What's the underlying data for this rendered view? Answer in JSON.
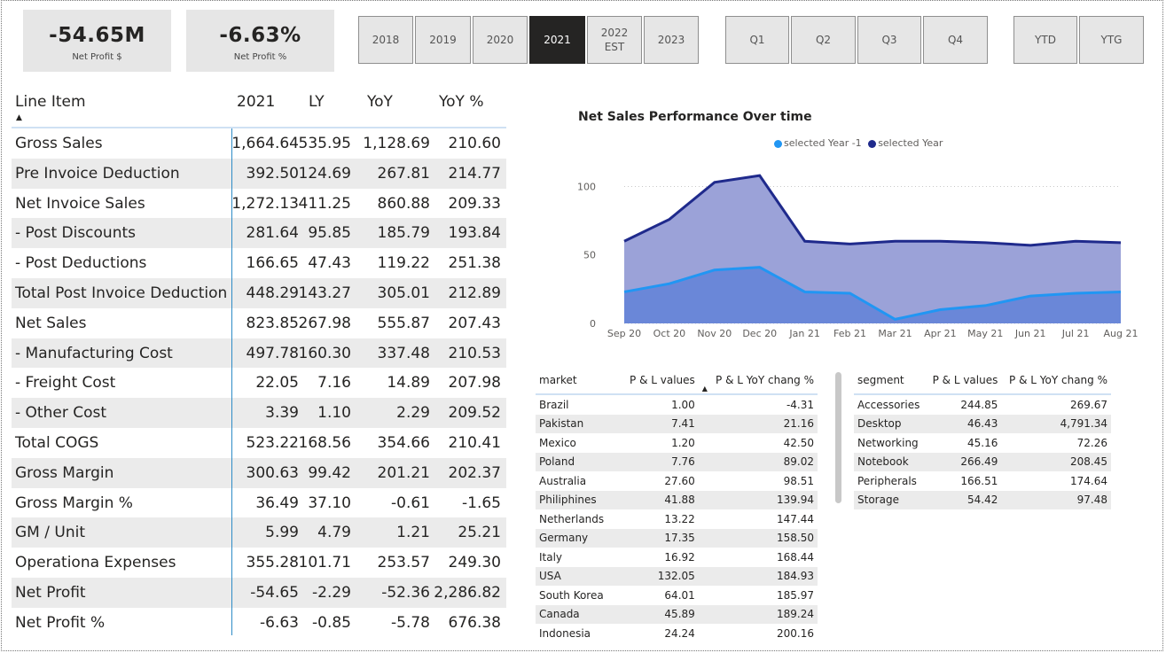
{
  "kpis": [
    {
      "value": "-54.65M",
      "label": "Net Profit $"
    },
    {
      "value": "-6.63%",
      "label": "Net Profit %"
    }
  ],
  "years": [
    "2018",
    "2019",
    "2020",
    "2021",
    "2022\nEST",
    "2023"
  ],
  "selected_year": "2021",
  "quarters": [
    "Q1",
    "Q2",
    "Q3",
    "Q4"
  ],
  "periods": [
    "YTD",
    "YTG"
  ],
  "pl": {
    "headers": [
      "Line Item",
      "2021",
      "LY",
      "YoY",
      "YoY %"
    ],
    "rows": [
      [
        "Gross Sales",
        "1,664.64",
        "535.95",
        "1,128.69",
        "210.60"
      ],
      [
        "Pre Invoice Deduction",
        "392.50",
        "124.69",
        "267.81",
        "214.77"
      ],
      [
        "Net Invoice Sales",
        "1,272.13",
        "411.25",
        "860.88",
        "209.33"
      ],
      [
        "- Post Discounts",
        "281.64",
        "95.85",
        "185.79",
        "193.84"
      ],
      [
        "- Post Deductions",
        "166.65",
        "47.43",
        "119.22",
        "251.38"
      ],
      [
        "Total Post Invoice Deduction",
        "448.29",
        "143.27",
        "305.01",
        "212.89"
      ],
      [
        "Net Sales",
        "823.85",
        "267.98",
        "555.87",
        "207.43"
      ],
      [
        "- Manufacturing Cost",
        "497.78",
        "160.30",
        "337.48",
        "210.53"
      ],
      [
        "- Freight Cost",
        "22.05",
        "7.16",
        "14.89",
        "207.98"
      ],
      [
        "- Other Cost",
        "3.39",
        "1.10",
        "2.29",
        "209.52"
      ],
      [
        "Total COGS",
        "523.22",
        "168.56",
        "354.66",
        "210.41"
      ],
      [
        "Gross Margin",
        "300.63",
        "99.42",
        "201.21",
        "202.37"
      ],
      [
        "Gross Margin %",
        "36.49",
        "37.10",
        "-0.61",
        "-1.65"
      ],
      [
        "GM / Unit",
        "5.99",
        "4.79",
        "1.21",
        "25.21"
      ],
      [
        "Operationa Expenses",
        "355.28",
        "101.71",
        "253.57",
        "249.30"
      ],
      [
        "Net Profit",
        "-54.65",
        "-2.29",
        "-52.36",
        "2,286.82"
      ],
      [
        "Net Profit %",
        "-6.63",
        "-0.85",
        "-5.78",
        "676.38"
      ]
    ]
  },
  "chart_data": {
    "type": "area",
    "title": "Net Sales Performance Over time",
    "categories": [
      "Sep 20",
      "Oct 20",
      "Nov 20",
      "Dec 20",
      "Jan 21",
      "Feb 21",
      "Mar 21",
      "Apr 21",
      "May 21",
      "Jun 21",
      "Jul 21",
      "Aug 21"
    ],
    "series": [
      {
        "name": "selected Year",
        "color": "#1f2a8c",
        "fill": "#9ba2d8",
        "values": [
          60,
          76,
          103,
          108,
          60,
          58,
          60,
          60,
          59,
          57,
          60,
          59
        ]
      },
      {
        "name": "selected Year -1",
        "color": "#2196f3",
        "fill": "#6a87d8",
        "values": [
          23,
          29,
          39,
          41,
          23,
          22,
          3,
          10,
          13,
          20,
          22,
          23
        ]
      }
    ],
    "yticks": [
      0,
      50,
      100
    ],
    "ylim": [
      0,
      110
    ],
    "legend": "top",
    "grid": true
  },
  "market_table": {
    "headers": [
      "market",
      "P & L values",
      "P & L YoY chang %"
    ],
    "rows": [
      [
        "Brazil",
        "1.00",
        "-4.31"
      ],
      [
        "Pakistan",
        "7.41",
        "21.16"
      ],
      [
        "Mexico",
        "1.20",
        "42.50"
      ],
      [
        "Poland",
        "7.76",
        "89.02"
      ],
      [
        "Australia",
        "27.60",
        "98.51"
      ],
      [
        "Philiphines",
        "41.88",
        "139.94"
      ],
      [
        "Netherlands",
        "13.22",
        "147.44"
      ],
      [
        "Germany",
        "17.35",
        "158.50"
      ],
      [
        "Italy",
        "16.92",
        "168.44"
      ],
      [
        "USA",
        "132.05",
        "184.93"
      ],
      [
        "South Korea",
        "64.01",
        "185.97"
      ],
      [
        "Canada",
        "45.89",
        "189.24"
      ],
      [
        "Indonesia",
        "24.24",
        "200.16"
      ]
    ]
  },
  "segment_table": {
    "headers": [
      "segment",
      "P & L values",
      "P & L YoY chang %"
    ],
    "rows": [
      [
        "Accessories",
        "244.85",
        "269.67"
      ],
      [
        "Desktop",
        "46.43",
        "4,791.34"
      ],
      [
        "Networking",
        "45.16",
        "72.26"
      ],
      [
        "Notebook",
        "266.49",
        "208.45"
      ],
      [
        "Peripherals",
        "166.51",
        "174.64"
      ],
      [
        "Storage",
        "54.42",
        "97.48"
      ]
    ]
  }
}
